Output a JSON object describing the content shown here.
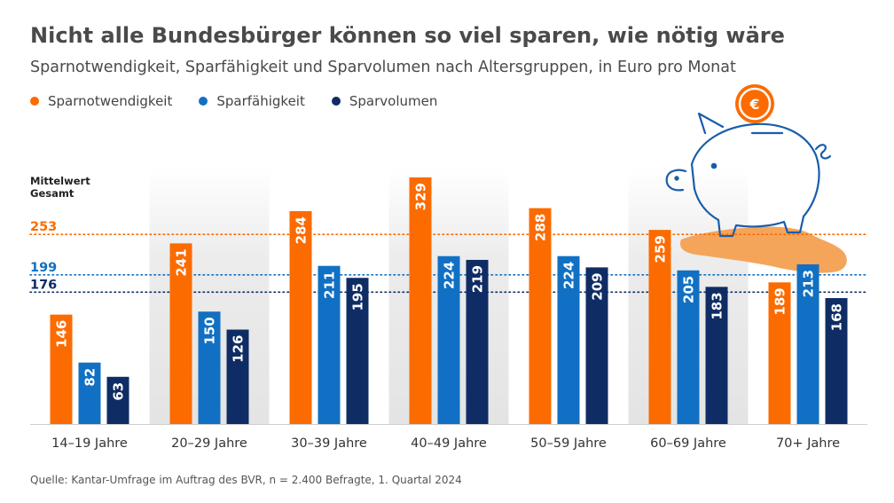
{
  "title": "Nicht alle Bundesbürger können so viel sparen, wie nötig wäre",
  "subtitle": "Sparnotwendigkeit, Sparfähigkeit und Sparvolumen nach Altersgruppen, in Euro pro Monat",
  "source": "Quelle: Kantar-Umfrage im Auftrag des BVR, n = 2.400 Befragte, 1. Quartal 2024",
  "icons": [
    "piggy-bank-icon",
    "euro-coin-icon",
    "hand-icon"
  ],
  "colors": {
    "orange": "#fb6b00",
    "blue": "#1170c3",
    "navy": "#0f2c64",
    "band": "#e7e7e7",
    "coin": "#fb6b00",
    "hand": "#f5a55a",
    "piggy_stroke": "#1a5dab"
  },
  "chart_data": {
    "type": "bar",
    "categories": [
      "14–19 Jahre",
      "20–29 Jahre",
      "30–39 Jahre",
      "40–49 Jahre",
      "50–59 Jahre",
      "60–69 Jahre",
      "70+ Jahre"
    ],
    "series": [
      {
        "name": "Sparnotwendigkeit",
        "color": "#fb6b00",
        "values": [
          146,
          241,
          284,
          329,
          288,
          259,
          189
        ]
      },
      {
        "name": "Sparfähigkeit",
        "color": "#1170c3",
        "values": [
          82,
          150,
          211,
          224,
          224,
          205,
          213
        ]
      },
      {
        "name": "Sparvolumen",
        "color": "#0f2c64",
        "values": [
          63,
          126,
          195,
          219,
          209,
          183,
          168
        ]
      }
    ],
    "reference_label": "Mittelwert Gesamt",
    "reference_lines": [
      {
        "value": 253,
        "label": "253",
        "color": "#fb6b00"
      },
      {
        "value": 199,
        "label": "199",
        "color": "#1170c3"
      },
      {
        "value": 176,
        "label": "176",
        "color": "#0f2c64"
      }
    ],
    "ylim": [
      0,
      340
    ],
    "legend_position": "top-left",
    "grid": false
  }
}
